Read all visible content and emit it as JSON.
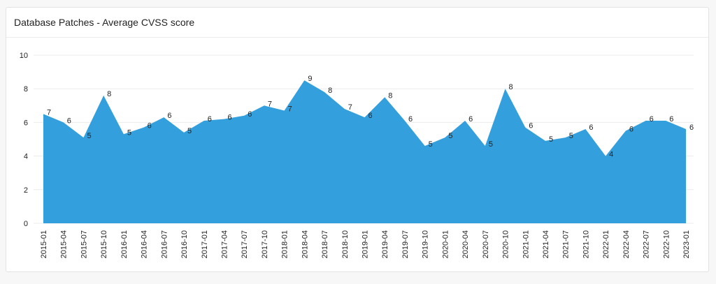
{
  "chart_data": {
    "type": "area",
    "title": "Database Patches - Average CVSS score",
    "categories": [
      "2015-01",
      "2015-04",
      "2015-07",
      "2015-10",
      "2016-01",
      "2016-04",
      "2016-07",
      "2016-10",
      "2017-01",
      "2017-04",
      "2017-07",
      "2017-10",
      "2018-01",
      "2018-04",
      "2018-07",
      "2018-10",
      "2019-01",
      "2019-04",
      "2019-07",
      "2019-10",
      "2020-01",
      "2020-04",
      "2020-07",
      "2020-10",
      "2021-01",
      "2021-04",
      "2021-07",
      "2021-10",
      "2022-01",
      "2022-04",
      "2022-07",
      "2022-10",
      "2023-01"
    ],
    "values": [
      6.5,
      6.0,
      5.1,
      7.6,
      5.3,
      5.7,
      6.3,
      5.4,
      6.1,
      6.2,
      6.4,
      7.0,
      6.7,
      8.5,
      7.8,
      6.8,
      6.3,
      7.5,
      6.1,
      4.6,
      5.1,
      6.1,
      4.6,
      8.0,
      5.7,
      4.9,
      5.1,
      5.6,
      4.0,
      5.5,
      6.1,
      6.1,
      5.6
    ],
    "value_labels": [
      "7",
      "6",
      "5",
      "8",
      "5",
      "6",
      "6",
      "5",
      "6",
      "6",
      "6",
      "7",
      "7",
      "9",
      "8",
      "7",
      "6",
      "8",
      "6",
      "5",
      "5",
      "6",
      "5",
      "8",
      "6",
      "5",
      "5",
      "6",
      "4",
      "6",
      "6",
      "6",
      "6"
    ],
    "color": "#339fdc",
    "ylim": [
      0,
      10
    ],
    "yticks": [
      0,
      2,
      4,
      6,
      8,
      10
    ],
    "grid": true
  }
}
